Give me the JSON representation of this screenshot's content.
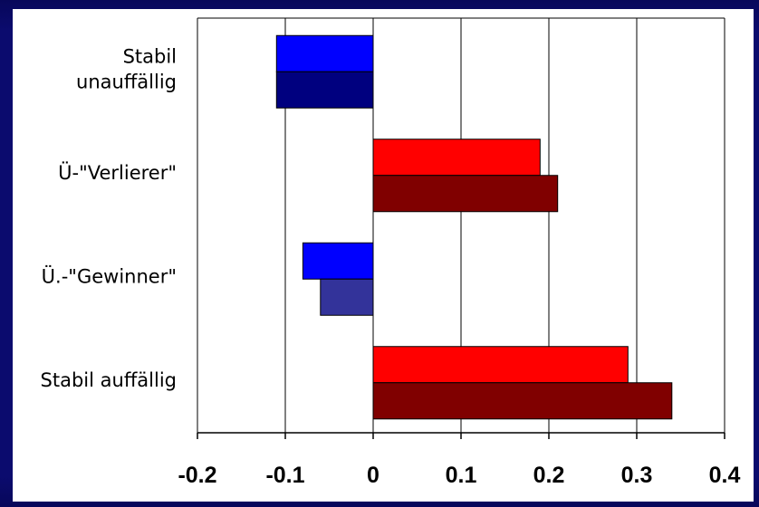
{
  "chart_data": {
    "type": "bar",
    "orientation": "horizontal",
    "categories": [
      "Stabil\nunauffällig",
      "Ü-\"Verlierer\"",
      "Ü.-\"Gewinner\"",
      "Stabil auffällig"
    ],
    "series": [
      {
        "values": [
          -0.11,
          0.19,
          -0.08,
          0.29
        ]
      },
      {
        "values": [
          -0.11,
          0.21,
          -0.06,
          0.34
        ]
      }
    ],
    "bar_colors": [
      [
        "#0000ff",
        "#ff0000",
        "#0000ff",
        "#ff0000"
      ],
      [
        "#00007f",
        "#800000",
        "#33339a",
        "#800000"
      ]
    ],
    "xlim": [
      -0.2,
      0.4
    ],
    "xticks": [
      "-0.2",
      "-0.1",
      "0",
      "0.1",
      "0.2",
      "0.3",
      "0.4"
    ],
    "grid": true,
    "title": "",
    "xlabel": "",
    "ylabel": ""
  }
}
